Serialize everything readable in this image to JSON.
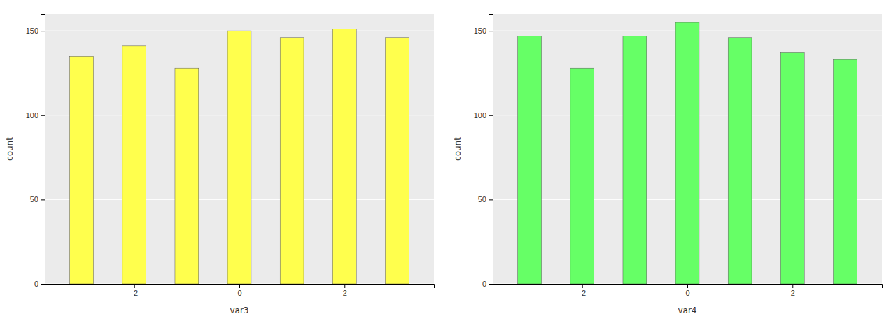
{
  "chart_data": [
    {
      "type": "bar",
      "x": [
        -3.0,
        -2.0,
        -1.0,
        0.0,
        1.0,
        2.0,
        3.0
      ],
      "values": [
        135,
        141,
        128,
        150,
        146,
        151,
        146
      ],
      "color": "#ffff4d",
      "xlabel": "var3",
      "ylabel": "count",
      "xlim": [
        -3.7,
        3.7
      ],
      "xticks": [
        -2,
        0,
        2
      ],
      "ylim": [
        0,
        160
      ],
      "yticks": [
        0,
        50,
        100,
        150
      ],
      "grid": true
    },
    {
      "type": "bar",
      "x": [
        -3.0,
        -2.0,
        -1.0,
        0.0,
        1.0,
        2.0,
        3.0
      ],
      "values": [
        147,
        128,
        147,
        155,
        146,
        137,
        133
      ],
      "color": "#66ff66",
      "xlabel": "var4",
      "ylabel": "count",
      "xlim": [
        -3.7,
        3.7
      ],
      "xticks": [
        -2,
        0,
        2
      ],
      "ylim": [
        0,
        160
      ],
      "yticks": [
        0,
        50,
        100,
        150
      ],
      "grid": true
    }
  ]
}
